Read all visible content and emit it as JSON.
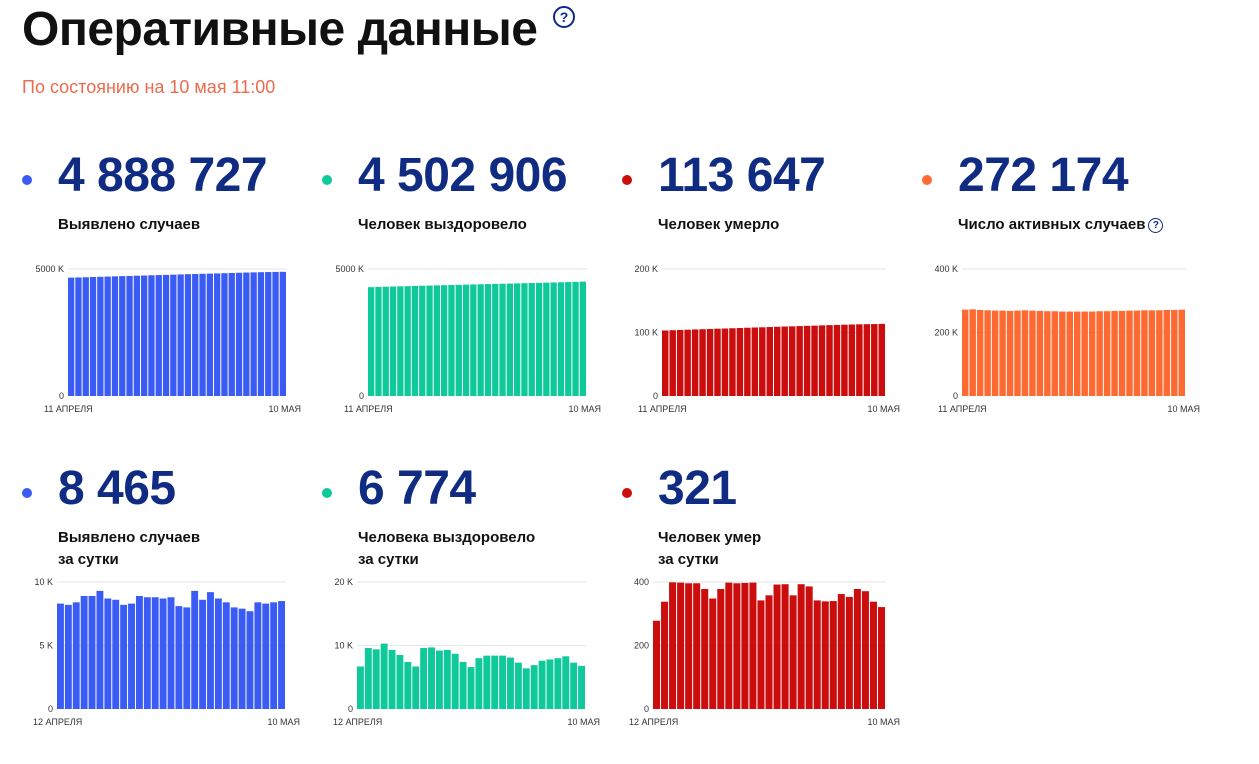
{
  "header": {
    "title": "Оперативные данные",
    "help_symbol": "?",
    "subtitle": "По состоянию на 10 мая 11:00"
  },
  "cards": [
    {
      "id": "cases-total",
      "value": "4 888 727",
      "label": [
        "Выявлено случаев"
      ],
      "color": "#3a5cf5",
      "dot_color": "#3a5cf5",
      "help": false
    },
    {
      "id": "recovered-total",
      "value": "4 502 906",
      "label": [
        "Человек выздоровело"
      ],
      "color": "#0fc99b",
      "dot_color": "#0fc99b",
      "help": false
    },
    {
      "id": "deaths-total",
      "value": "113 647",
      "label": [
        "Человек умерло"
      ],
      "color": "#cc0d0d",
      "dot_color": "#cc0d0d",
      "help": false
    },
    {
      "id": "active-total",
      "value": "272 174",
      "label": [
        "Число активных случаев"
      ],
      "color": "#ff6a33",
      "dot_color": "#ff6a33",
      "help": true
    },
    {
      "id": "cases-daily",
      "value": "8 465",
      "label": [
        "Выявлено случаев",
        "за сутки"
      ],
      "color": "#3a5cf5",
      "dot_color": "#3a5cf5",
      "help": false
    },
    {
      "id": "recovered-daily",
      "value": "6 774",
      "label": [
        "Человека выздоровело",
        "за сутки"
      ],
      "color": "#0fc99b",
      "dot_color": "#0fc99b",
      "help": false
    },
    {
      "id": "deaths-daily",
      "value": "321",
      "label": [
        "Человек умер",
        "за сутки"
      ],
      "color": "#cc0d0d",
      "dot_color": "#cc0d0d",
      "help": false
    }
  ],
  "chart_data": [
    {
      "type": "bar",
      "series_id": "cases-total",
      "x_start_label": "11 АПРЕЛЯ",
      "x_end_label": "10 МАЯ",
      "y_ticks": [
        {
          "value": 0,
          "label": "0"
        },
        {
          "value": 5000,
          "label": "5000 K"
        }
      ],
      "ylim": [
        0,
        5000
      ],
      "values": [
        4660,
        4668,
        4676,
        4685,
        4693,
        4702,
        4710,
        4719,
        4727,
        4736,
        4744,
        4753,
        4761,
        4769,
        4778,
        4786,
        4795,
        4803,
        4811,
        4819,
        4827,
        4835,
        4844,
        4852,
        4860,
        4868,
        4874,
        4880,
        4884,
        4889
      ]
    },
    {
      "type": "bar",
      "series_id": "recovered-total",
      "x_start_label": "11 АПРЕЛЯ",
      "x_end_label": "10 МАЯ",
      "y_ticks": [
        {
          "value": 0,
          "label": "0"
        },
        {
          "value": 5000,
          "label": "5000 K"
        }
      ],
      "ylim": [
        0,
        5000
      ],
      "values": [
        4285,
        4294,
        4302,
        4310,
        4318,
        4325,
        4333,
        4341,
        4348,
        4356,
        4363,
        4371,
        4378,
        4385,
        4392,
        4399,
        4406,
        4413,
        4420,
        4427,
        4434,
        4441,
        4448,
        4455,
        4462,
        4469,
        4477,
        4486,
        4494,
        4503
      ]
    },
    {
      "type": "bar",
      "series_id": "deaths-total",
      "x_start_label": "11 АПРЕЛЯ",
      "x_end_label": "10 МАЯ",
      "y_ticks": [
        {
          "value": 0,
          "label": "0"
        },
        {
          "value": 100,
          "label": "100 K"
        },
        {
          "value": 200,
          "label": "200 K"
        }
      ],
      "ylim": [
        0,
        200
      ],
      "values": [
        103.2,
        103.6,
        104.0,
        104.4,
        104.8,
        105.2,
        105.6,
        106.0,
        106.3,
        106.7,
        107.1,
        107.5,
        107.9,
        108.2,
        108.6,
        109.0,
        109.4,
        109.7,
        110.1,
        110.5,
        110.8,
        111.2,
        111.6,
        111.9,
        112.3,
        112.6,
        112.9,
        113.1,
        113.3,
        113.6
      ]
    },
    {
      "type": "bar",
      "series_id": "active-total",
      "x_start_label": "11 АПРЕЛЯ",
      "x_end_label": "10 МАЯ",
      "y_ticks": [
        {
          "value": 0,
          "label": "0"
        },
        {
          "value": 200,
          "label": "200 K"
        },
        {
          "value": 400,
          "label": "400 K"
        }
      ],
      "ylim": [
        0,
        400
      ],
      "values": [
        272,
        273,
        271,
        270,
        269,
        269,
        268,
        269,
        270,
        269,
        268,
        267,
        267,
        266,
        266,
        266,
        266,
        266,
        267,
        267,
        268,
        268,
        269,
        269,
        270,
        270,
        270,
        271,
        271,
        272
      ]
    },
    {
      "type": "bar",
      "series_id": "cases-daily",
      "x_start_label": "12 АПРЕЛЯ",
      "x_end_label": "10 МАЯ",
      "y_ticks": [
        {
          "value": 0,
          "label": "0"
        },
        {
          "value": 5,
          "label": "5 K"
        },
        {
          "value": 10,
          "label": "10 K"
        }
      ],
      "ylim": [
        0,
        10
      ],
      "values": [
        8.3,
        8.2,
        8.4,
        8.9,
        8.9,
        9.3,
        8.7,
        8.6,
        8.2,
        8.3,
        8.9,
        8.8,
        8.8,
        8.7,
        8.8,
        8.1,
        8.0,
        9.3,
        8.6,
        9.2,
        8.7,
        8.4,
        8.0,
        7.9,
        7.7,
        8.4,
        8.3,
        8.4,
        8.5
      ]
    },
    {
      "type": "bar",
      "series_id": "recovered-daily",
      "x_start_label": "12 АПРЕЛЯ",
      "x_end_label": "10 МАЯ",
      "y_ticks": [
        {
          "value": 0,
          "label": "0"
        },
        {
          "value": 10,
          "label": "10 K"
        },
        {
          "value": 20,
          "label": "20 K"
        }
      ],
      "ylim": [
        0,
        20
      ],
      "values": [
        6.7,
        9.6,
        9.4,
        10.3,
        9.3,
        8.5,
        7.4,
        6.7,
        9.6,
        9.7,
        9.2,
        9.3,
        8.7,
        7.4,
        6.6,
        8.0,
        8.4,
        8.4,
        8.4,
        8.1,
        7.3,
        6.4,
        6.9,
        7.6,
        7.8,
        8.0,
        8.3,
        7.3,
        6.8
      ]
    },
    {
      "type": "bar",
      "series_id": "deaths-daily",
      "x_start_label": "12 АПРЕЛЯ",
      "x_end_label": "10 МАЯ",
      "y_ticks": [
        {
          "value": 0,
          "label": "0"
        },
        {
          "value": 200,
          "label": "200"
        },
        {
          "value": 400,
          "label": "400"
        }
      ],
      "ylim": [
        0,
        400
      ],
      "values": [
        278,
        338,
        399,
        398,
        396,
        396,
        378,
        348,
        378,
        398,
        396,
        397,
        398,
        342,
        358,
        392,
        393,
        358,
        393,
        386,
        342,
        339,
        340,
        362,
        353,
        378,
        371,
        338,
        321
      ]
    }
  ]
}
